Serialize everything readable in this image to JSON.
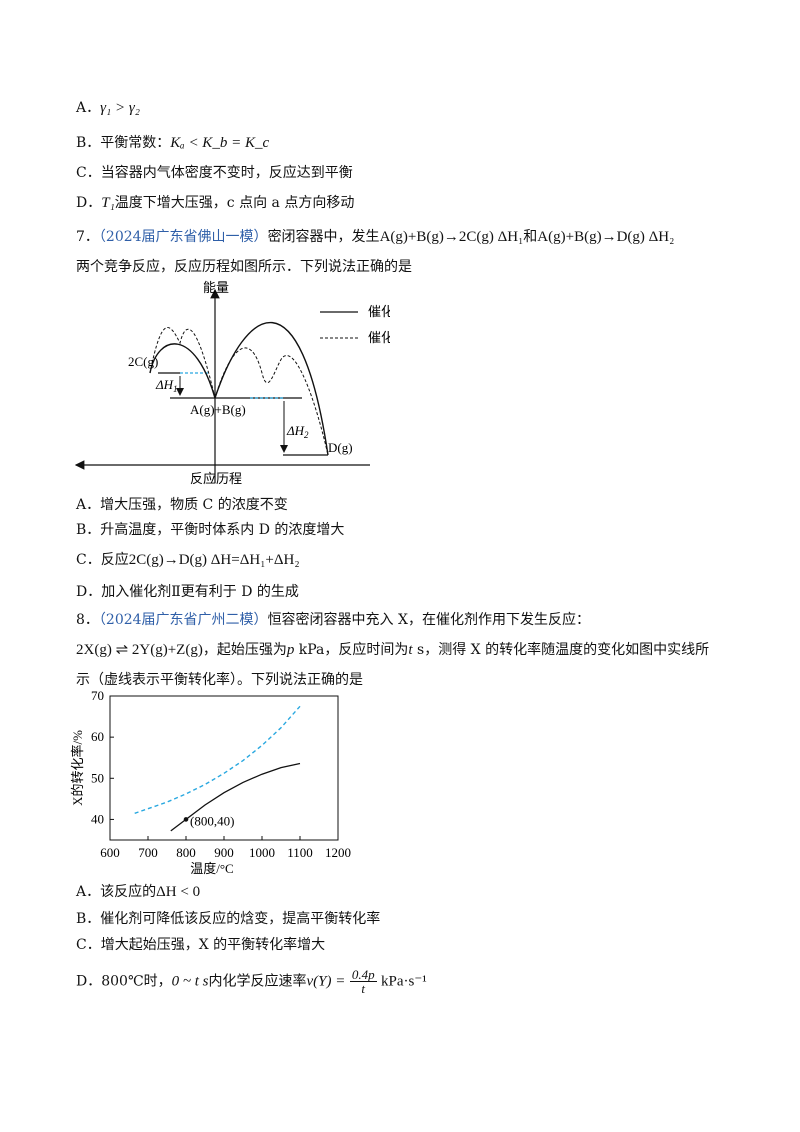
{
  "q6": {
    "A_label": "A．",
    "A_math": "γ₁ > γ₂",
    "B_label": "B．平衡常数：",
    "B_math": "Kₐ < K_b = K_c",
    "C": "C．当容器内气体密度不变时，反应达到平衡",
    "D_label": "D．",
    "D_math": "T₁",
    "D_text": "温度下增大压强，c 点向 a 点方向移动"
  },
  "q7": {
    "num": "7．",
    "source": "（2024届广东省佛山一模）",
    "text1": "密闭容器中，发生",
    "eq1": "A(g)+B(g)→2C(g)  ΔH₁",
    "and": "和",
    "eq2": "A(g)+B(g)→D(g)  ΔH₂",
    "text2": "两个竞争反应，反应历程如图所示．下列说法正确的是",
    "diagram": {
      "y_label": "能量",
      "x_label": "反应历程",
      "legend1": "催化剂Ⅰ",
      "legend2": "催化剂Ⅱ",
      "label_2C": "2C(g)",
      "label_dH1": "ΔH",
      "label_dH1_sub": "1",
      "label_AB": "A(g)+B(g)",
      "label_dH2": "ΔH",
      "label_dH2_sub": "2",
      "label_D": "D(g)",
      "series_colors": {
        "catalyst_I": "#111111",
        "catalyst_II": "#111111",
        "reference_dash": "#29a8e0"
      }
    },
    "A": "A．增大压强，物质 C 的浓度不变",
    "B": "B．升高温度，平衡时体系内 D 的浓度增大",
    "C_label": "C．反应",
    "C_math": "2C(g)→D(g)  ΔH=ΔH₁+ΔH₂",
    "D": "D．加入催化剂Ⅱ更有利于 D 的生成"
  },
  "q8": {
    "num": "8．",
    "source": "（2024届广东省广州二模）",
    "text1": "恒容密闭容器中充入 X，在催化剂作用下发生反应：",
    "eq": "2X(g) ⇌ 2Y(g)+Z(g)",
    "text2a": "，起始压强为",
    "p": "p",
    "text2b": "kPa，反应时间为",
    "t": "t",
    "text2c": "s，测得 X 的转化率随温度的变化如图中实线所",
    "text3": "示（虚线表示平衡转化率）。下列说法正确的是",
    "A_label": "A．该反应的",
    "A_math": "ΔH < 0",
    "B": "B．催化剂可降低该反应的焓变，提高平衡转化率",
    "C": "C．增大起始压强，X 的平衡转化率增大",
    "D_label": "D．800℃时，",
    "D_m1": "0 ~ t s",
    "D_text": "内化学反应速率",
    "D_m2": "v(Y) =",
    "D_num": "0.4p",
    "D_den": "t",
    "D_unit": "kPa·s⁻¹"
  },
  "chart_data": {
    "type": "line",
    "xlabel": "温度/°C",
    "ylabel": "X的转化率/%",
    "xlim": [
      600,
      1200
    ],
    "ylim": [
      35,
      70
    ],
    "xticks": [
      "600",
      "700",
      "800",
      "900",
      "1000",
      "1100",
      "1200"
    ],
    "yticks": [
      "40",
      "50",
      "60",
      "70"
    ],
    "annotation": "(800,40)",
    "grid": false,
    "series": [
      {
        "style": "solid",
        "color": "#111111",
        "x": [
          760,
          800,
          850,
          900,
          950,
          1000,
          1050,
          1100
        ],
        "y": [
          37.2,
          40,
          43.5,
          46.5,
          49,
          51,
          52.6,
          53.6
        ]
      },
      {
        "style": "dashed",
        "color": "#29a8e0",
        "x": [
          665,
          700,
          750,
          800,
          850,
          900,
          950,
          1000,
          1050,
          1100
        ],
        "y": [
          41.5,
          42.6,
          44.2,
          46.2,
          48.5,
          51.2,
          54.3,
          58,
          62.3,
          67.5
        ]
      }
    ]
  }
}
